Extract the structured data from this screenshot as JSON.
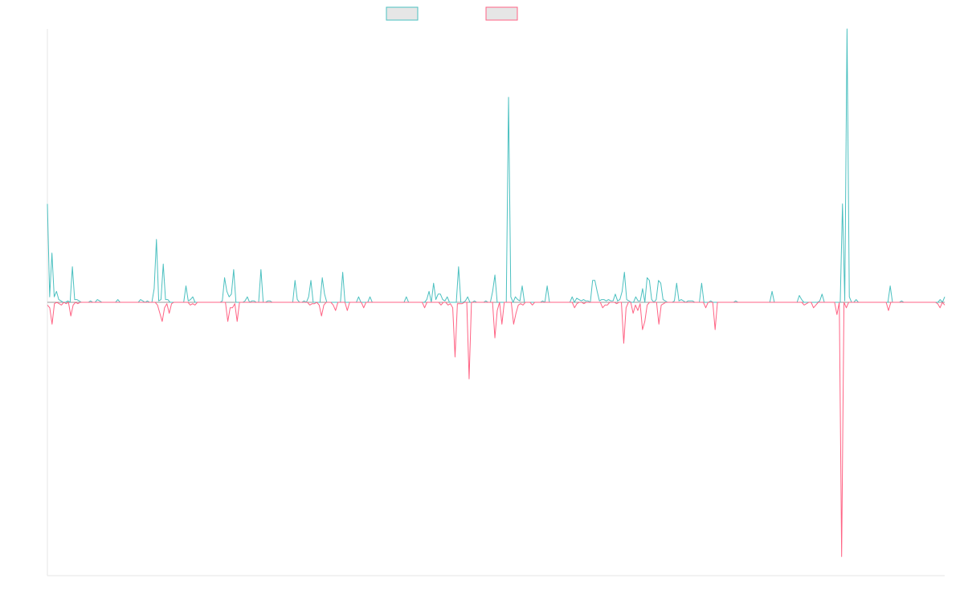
{
  "chart_data": {
    "type": "line",
    "title": "",
    "xlabel": "",
    "ylabel": "",
    "ylim": [
      -1.0,
      1.0
    ],
    "grid": false,
    "legend": "top",
    "colors": {
      "series_a": "#4BC0C0",
      "series_b": "#FF6384",
      "legend_fill": "#e6e6e6",
      "axis": "#e6e6e6"
    },
    "series": [
      {
        "key": "a",
        "values": [
          0.36,
          0.02,
          0.18,
          0.02,
          0.04,
          0.01,
          0.005,
          0,
          0,
          0.005,
          0,
          0.13,
          0.01,
          0.01,
          0.005,
          0,
          0,
          0,
          0,
          0.005,
          0,
          0,
          0.01,
          0.005,
          0,
          0,
          0,
          0,
          0,
          0,
          0,
          0.01,
          0,
          0,
          0,
          0,
          0,
          0,
          0,
          0,
          0,
          0.01,
          0.005,
          0,
          0.005,
          0,
          0,
          0.05,
          0.23,
          0.005,
          0.01,
          0.14,
          0.01,
          0.01,
          0,
          0,
          0,
          0,
          0,
          0,
          0,
          0.06,
          0.005,
          0.01,
          0.02,
          0,
          0,
          0,
          0,
          0,
          0,
          0,
          0,
          0,
          0,
          0,
          0,
          0.005,
          0.09,
          0.04,
          0.02,
          0.03,
          0.12,
          0,
          0,
          0,
          0,
          0.005,
          0.02,
          0,
          0.005,
          0.005,
          0,
          0,
          0.12,
          0,
          0,
          0.005,
          0.005,
          0,
          0,
          0,
          0,
          0,
          0,
          0,
          0,
          0,
          0,
          0.08,
          0.01,
          0,
          0,
          0.005,
          0,
          0.02,
          0.08,
          0,
          0,
          0,
          0,
          0.09,
          0.03,
          0,
          0,
          0,
          0,
          0,
          0,
          0,
          0.11,
          0,
          0,
          0,
          0,
          0,
          0,
          0.02,
          0,
          0,
          0,
          0,
          0.02,
          0,
          0,
          0,
          0,
          0,
          0,
          0,
          0,
          0,
          0,
          0,
          0,
          0,
          0,
          0,
          0.02,
          0,
          0,
          0,
          0,
          0,
          0,
          0,
          0,
          0.01,
          0.04,
          0,
          0.07,
          0.01,
          0.03,
          0.03,
          0.01,
          0.005,
          0.02,
          0,
          0,
          0,
          0,
          0.13,
          0,
          0,
          0.005,
          0.02,
          0,
          0,
          0.005,
          0,
          0,
          0,
          0,
          0.005,
          0,
          0,
          0.04,
          0.1,
          0,
          0,
          0,
          0,
          0,
          0.75,
          0.02,
          0,
          0.02,
          0.01,
          0.005,
          0.06,
          0,
          0,
          0,
          0,
          0,
          0,
          0,
          0,
          0.005,
          0,
          0.06,
          0,
          0,
          0,
          0,
          0,
          0,
          0,
          0,
          0,
          0,
          0.02,
          0,
          0.015,
          0.01,
          0.005,
          0.01,
          0.005,
          0.005,
          0,
          0.08,
          0.08,
          0.04,
          0.005,
          0.01,
          0.01,
          0.005,
          0.01,
          0.005,
          0.005,
          0.03,
          0.005,
          0.01,
          0.04,
          0.11,
          0.01,
          0.005,
          0,
          0,
          0.02,
          0.005,
          0.005,
          0.05,
          0,
          0.09,
          0.08,
          0.01,
          0,
          0.01,
          0.08,
          0.07,
          0.01,
          0.005,
          0,
          0,
          0,
          0.005,
          0.07,
          0.005,
          0.01,
          0.005,
          0,
          0.005,
          0.005,
          0.005,
          0,
          0,
          0,
          0.07,
          0,
          0,
          0,
          0.005,
          0,
          0,
          0,
          0,
          0,
          0,
          0,
          0,
          0,
          0,
          0.005,
          0,
          0,
          0,
          0,
          0,
          0,
          0,
          0,
          0,
          0,
          0,
          0,
          0,
          0,
          0,
          0.04,
          0,
          0,
          0,
          0,
          0,
          0,
          0,
          0,
          0,
          0,
          0,
          0.025,
          0.01,
          0,
          0,
          0,
          0,
          0,
          0,
          0,
          0.005,
          0.03,
          0,
          0,
          0,
          0,
          0,
          0,
          0,
          0,
          0.36,
          0.005,
          1.08,
          0.02,
          0,
          0,
          0.01,
          0,
          0,
          0,
          0,
          0,
          0,
          0,
          0,
          0,
          0,
          0,
          0,
          0,
          0,
          0.06,
          0,
          0,
          0,
          0,
          0.005,
          0,
          0,
          0,
          0,
          0,
          0,
          0,
          0,
          0,
          0,
          0,
          0,
          0,
          0,
          0,
          0,
          0.01,
          0,
          0.02
        ]
      },
      {
        "key": "b",
        "values": [
          -0.01,
          -0.02,
          -0.08,
          -0.005,
          0,
          -0.005,
          -0.01,
          0,
          -0.005,
          0,
          -0.05,
          -0.01,
          0,
          -0.005,
          0,
          0,
          0,
          0,
          0,
          0,
          0,
          0,
          0,
          0,
          0,
          0,
          0,
          0,
          0,
          0,
          0,
          0,
          0,
          0,
          0,
          0,
          0,
          0,
          0,
          0,
          0,
          0,
          0,
          0,
          0,
          0,
          0,
          -0.01,
          -0.04,
          -0.07,
          -0.02,
          -0.005,
          -0.04,
          -0.005,
          0,
          0,
          0,
          0,
          0,
          0,
          0,
          -0.01,
          -0.005,
          -0.01,
          0,
          0,
          0,
          0,
          0,
          0,
          0,
          0,
          0,
          0,
          0,
          0,
          0,
          -0.07,
          -0.02,
          -0.02,
          -0.005,
          -0.07,
          0,
          0,
          0,
          0,
          0,
          0,
          0,
          0,
          0,
          0,
          0,
          0,
          0,
          0,
          0,
          0,
          0,
          0,
          0,
          0,
          0,
          0,
          0,
          0,
          0,
          0,
          0,
          0,
          0,
          0,
          -0.01,
          -0.005,
          -0.005,
          0,
          -0.01,
          -0.05,
          -0.01,
          0,
          0,
          0,
          -0.01,
          -0.03,
          0,
          0,
          0,
          0,
          -0.03,
          0,
          0,
          0,
          0,
          0,
          0,
          -0.02,
          0,
          0,
          0,
          0,
          0,
          0,
          0,
          0,
          0,
          0,
          0,
          0,
          0,
          0,
          0,
          0,
          0,
          0,
          0,
          0,
          0,
          0,
          0,
          0,
          0,
          -0.02,
          0,
          0,
          0,
          0,
          0,
          0,
          -0.01,
          0,
          0,
          -0.01,
          -0.005,
          -0.02,
          -0.2,
          -0.005,
          -0.005,
          -0.005,
          0,
          0,
          -0.28,
          0,
          0,
          0,
          0,
          0,
          0,
          0,
          0,
          0,
          0,
          -0.13,
          -0.03,
          0,
          -0.08,
          0,
          0,
          0,
          0,
          -0.08,
          -0.04,
          -0.01,
          -0.005,
          -0.01,
          0,
          0,
          0,
          -0.01,
          0,
          0,
          0,
          0,
          0,
          0,
          0,
          0,
          0,
          0,
          0,
          0,
          0,
          0,
          0,
          0,
          0,
          -0.02,
          -0.005,
          0,
          0,
          -0.005,
          0,
          0,
          0,
          0,
          0,
          0,
          0,
          -0.02,
          -0.01,
          -0.01,
          0,
          0,
          0,
          -0.005,
          0,
          0,
          -0.15,
          -0.02,
          0,
          0,
          -0.04,
          -0.01,
          -0.03,
          -0.005,
          -0.1,
          -0.07,
          -0.01,
          0,
          0,
          0,
          0,
          -0.08,
          -0.01,
          -0.005,
          0,
          0,
          0,
          0,
          0,
          0,
          0,
          0,
          0,
          0,
          0,
          0,
          0,
          0,
          0,
          0,
          0,
          -0.02,
          0,
          0,
          0,
          -0.1,
          0,
          0,
          0,
          0,
          0,
          0,
          0,
          0,
          0,
          0,
          0,
          0,
          0,
          0,
          0,
          0,
          0,
          0,
          0,
          0,
          0,
          0,
          0,
          0,
          0,
          0,
          0,
          0,
          0,
          0,
          0,
          0,
          0,
          0,
          0,
          0,
          0,
          -0.01,
          -0.005,
          0,
          0,
          -0.02,
          -0.01,
          0,
          0,
          0,
          0,
          0,
          0,
          0,
          0,
          -0.045,
          0,
          -0.93,
          0,
          -0.02,
          0,
          0,
          0,
          0,
          0,
          0,
          0,
          0,
          0,
          0,
          0,
          0,
          0,
          0,
          0,
          0,
          0,
          -0.03,
          0,
          0,
          0,
          0,
          0,
          0,
          0,
          0,
          0,
          0,
          0,
          0,
          0,
          0,
          0,
          0,
          0,
          0,
          0,
          0,
          -0.005,
          -0.02,
          0,
          -0.01
        ]
      }
    ]
  }
}
